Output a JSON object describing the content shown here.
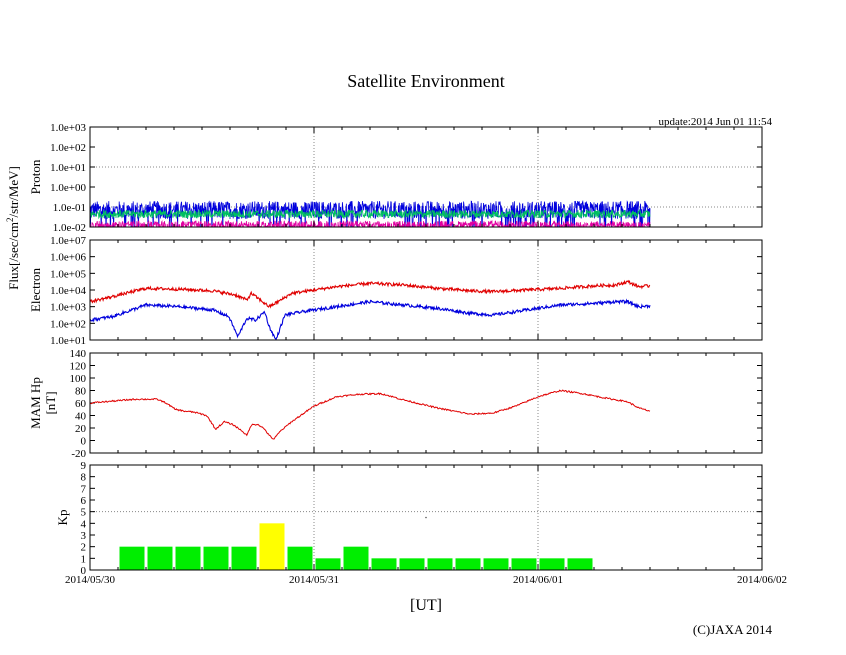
{
  "title": "Satellite Environment",
  "update_text": "update:2014 Jun 01 11:54",
  "copyright": "(C)JAXA 2014",
  "flux_label": "Flux[/sec/cm",
  "flux_sup": "2",
  "flux_label_tail": "/str/MeV]",
  "xlabel": "[UT]",
  "x_ticks": [
    "2014/05/30",
    "2014/05/31",
    "2014/06/01",
    "2014/06/02"
  ],
  "x_range_days": [
    0,
    3
  ],
  "data_end_day": 2.5,
  "colors": {
    "red": "#e00000",
    "blue": "#0000dd",
    "green": "#00c060",
    "magenta": "#e000a0",
    "kp_green": "#00ee00",
    "kp_yellow": "#ffff00",
    "grid": "#888888"
  },
  "chart_data": [
    {
      "type": "line",
      "name": "proton",
      "ylabel": "Proton",
      "yscale": "log",
      "ylim_exp": [
        -2,
        3
      ],
      "y_ticks": [
        "1.0e-02",
        "1.0e-01",
        "1.0e+00",
        "1.0e+01",
        "1.0e+02",
        "1.0e+03"
      ],
      "series": [
        {
          "name": "proton-blue",
          "color": "blue",
          "level_exp": -1.15,
          "spread": 0.45
        },
        {
          "name": "proton-green",
          "color": "green",
          "level_exp": -1.35,
          "spread": 0.2
        },
        {
          "name": "proton-magenta",
          "color": "magenta",
          "level_exp": -1.85,
          "spread": 0.15
        }
      ]
    },
    {
      "type": "line",
      "name": "electron",
      "ylabel": "Electron",
      "yscale": "log",
      "ylim_exp": [
        1,
        7
      ],
      "y_ticks": [
        "1.0e+01",
        "1.0e+02",
        "1.0e+03",
        "1.0e+04",
        "1.0e+05",
        "1.0e+06",
        "1.0e+07"
      ],
      "series": [
        {
          "name": "electron-red",
          "color": "red",
          "points": [
            [
              0,
              3.3
            ],
            [
              0.1,
              3.6
            ],
            [
              0.25,
              4.1
            ],
            [
              0.4,
              4.05
            ],
            [
              0.55,
              3.95
            ],
            [
              0.65,
              3.7
            ],
            [
              0.7,
              3.4
            ],
            [
              0.72,
              3.8
            ],
            [
              0.75,
              3.5
            ],
            [
              0.8,
              3.0
            ],
            [
              0.84,
              3.3
            ],
            [
              0.9,
              3.8
            ],
            [
              1.0,
              4.0
            ],
            [
              1.1,
              4.2
            ],
            [
              1.25,
              4.4
            ],
            [
              1.4,
              4.3
            ],
            [
              1.55,
              4.1
            ],
            [
              1.7,
              3.95
            ],
            [
              1.8,
              3.9
            ],
            [
              1.95,
              4.0
            ],
            [
              2.1,
              4.1
            ],
            [
              2.25,
              4.25
            ],
            [
              2.35,
              4.3
            ],
            [
              2.4,
              4.5
            ],
            [
              2.45,
              4.2
            ],
            [
              2.5,
              4.25
            ]
          ]
        },
        {
          "name": "electron-blue",
          "color": "blue",
          "points": [
            [
              0,
              2.2
            ],
            [
              0.1,
              2.4
            ],
            [
              0.25,
              3.1
            ],
            [
              0.4,
              3.0
            ],
            [
              0.55,
              2.8
            ],
            [
              0.62,
              2.4
            ],
            [
              0.66,
              1.2
            ],
            [
              0.7,
              2.3
            ],
            [
              0.74,
              2.2
            ],
            [
              0.78,
              2.7
            ],
            [
              0.8,
              1.8
            ],
            [
              0.83,
              1.0
            ],
            [
              0.87,
              2.5
            ],
            [
              0.95,
              2.7
            ],
            [
              1.05,
              2.9
            ],
            [
              1.15,
              3.1
            ],
            [
              1.25,
              3.3
            ],
            [
              1.4,
              3.1
            ],
            [
              1.55,
              2.9
            ],
            [
              1.7,
              2.6
            ],
            [
              1.8,
              2.5
            ],
            [
              1.95,
              2.8
            ],
            [
              2.1,
              3.1
            ],
            [
              2.25,
              3.2
            ],
            [
              2.35,
              3.3
            ],
            [
              2.4,
              3.3
            ],
            [
              2.45,
              3.0
            ],
            [
              2.5,
              3.05
            ]
          ]
        }
      ]
    },
    {
      "type": "line",
      "name": "mam-hp",
      "ylabel": "MAM Hp",
      "ylabel2": "[nT]",
      "ylim": [
        -20,
        140
      ],
      "y_ticks": [
        "-20",
        "0",
        "20",
        "40",
        "60",
        "80",
        "100",
        "120",
        "140"
      ],
      "series": [
        {
          "name": "hp-red",
          "color": "red",
          "points": [
            [
              0,
              60
            ],
            [
              0.1,
              63
            ],
            [
              0.2,
              66
            ],
            [
              0.3,
              66
            ],
            [
              0.34,
              60
            ],
            [
              0.38,
              50
            ],
            [
              0.42,
              47
            ],
            [
              0.47,
              45
            ],
            [
              0.52,
              40
            ],
            [
              0.54,
              30
            ],
            [
              0.56,
              18
            ],
            [
              0.6,
              30
            ],
            [
              0.64,
              25
            ],
            [
              0.68,
              15
            ],
            [
              0.7,
              8
            ],
            [
              0.72,
              25
            ],
            [
              0.75,
              26
            ],
            [
              0.78,
              18
            ],
            [
              0.8,
              8
            ],
            [
              0.82,
              2
            ],
            [
              0.85,
              15
            ],
            [
              0.9,
              30
            ],
            [
              1.0,
              55
            ],
            [
              1.1,
              70
            ],
            [
              1.2,
              74
            ],
            [
              1.3,
              75
            ],
            [
              1.4,
              65
            ],
            [
              1.55,
              52
            ],
            [
              1.7,
              42
            ],
            [
              1.8,
              44
            ],
            [
              1.9,
              55
            ],
            [
              2.0,
              70
            ],
            [
              2.1,
              80
            ],
            [
              2.2,
              75
            ],
            [
              2.3,
              68
            ],
            [
              2.4,
              62
            ],
            [
              2.45,
              52
            ],
            [
              2.5,
              47
            ]
          ]
        }
      ]
    },
    {
      "type": "bar",
      "name": "kp",
      "ylabel": "Kp",
      "ylim": [
        0,
        9
      ],
      "y_ticks": [
        "0",
        "1",
        "2",
        "3",
        "4",
        "5",
        "6",
        "7",
        "8",
        "9"
      ],
      "bar_width_days": 0.125,
      "bars": [
        {
          "start_day": 0.125,
          "value": 2,
          "color": "kp_green"
        },
        {
          "start_day": 0.25,
          "value": 2,
          "color": "kp_green"
        },
        {
          "start_day": 0.375,
          "value": 2,
          "color": "kp_green"
        },
        {
          "start_day": 0.5,
          "value": 2,
          "color": "kp_green"
        },
        {
          "start_day": 0.625,
          "value": 2,
          "color": "kp_green"
        },
        {
          "start_day": 0.75,
          "value": 4,
          "color": "kp_yellow"
        },
        {
          "start_day": 0.875,
          "value": 2,
          "color": "kp_green"
        },
        {
          "start_day": 1.0,
          "value": 1,
          "color": "kp_green"
        },
        {
          "start_day": 1.125,
          "value": 2,
          "color": "kp_green"
        },
        {
          "start_day": 1.25,
          "value": 1,
          "color": "kp_green"
        },
        {
          "start_day": 1.375,
          "value": 1,
          "color": "kp_green"
        },
        {
          "start_day": 1.5,
          "value": 1,
          "color": "kp_green"
        },
        {
          "start_day": 1.625,
          "value": 1,
          "color": "kp_green"
        },
        {
          "start_day": 1.75,
          "value": 1,
          "color": "kp_green"
        },
        {
          "start_day": 1.875,
          "value": 1,
          "color": "kp_green"
        },
        {
          "start_day": 2.0,
          "value": 1,
          "color": "kp_green"
        },
        {
          "start_day": 2.125,
          "value": 1,
          "color": "kp_green"
        }
      ]
    }
  ]
}
